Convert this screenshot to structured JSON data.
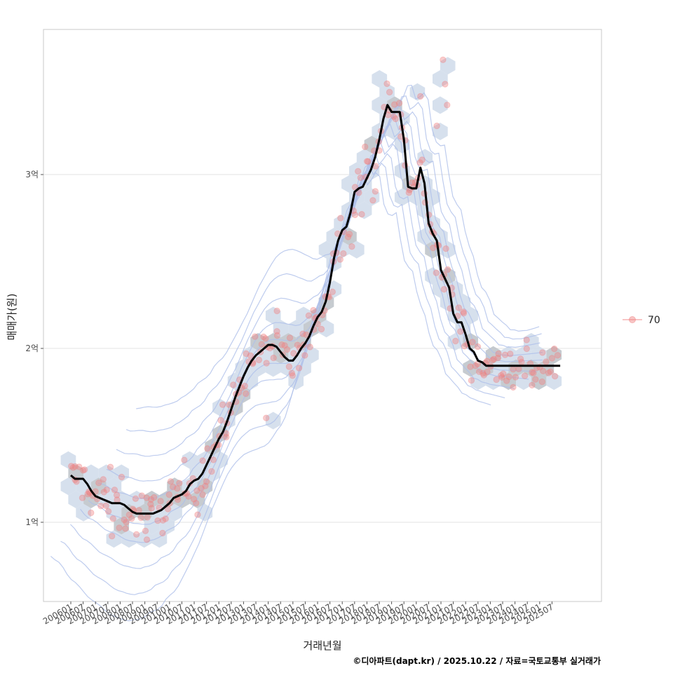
{
  "chart_data": {
    "type": "scatter",
    "title": "",
    "xlabel": "거래년월",
    "ylabel": "매매가(원)",
    "caption": "©디아파트(dapt.kr) / 2025.10.22 / 자료=국토교통부 실거래가",
    "x_ticks": [
      "200601",
      "200607",
      "200701",
      "200707",
      "200801",
      "200807",
      "200901",
      "200907",
      "201001",
      "201007",
      "201101",
      "201107",
      "201201",
      "201207",
      "201301",
      "201307",
      "201401",
      "201407",
      "201501",
      "201507",
      "201601",
      "201607",
      "201701",
      "201707",
      "201801",
      "201807",
      "201901",
      "201907",
      "202001",
      "202007",
      "202101",
      "202107",
      "202201",
      "202207",
      "202301",
      "202307",
      "202401",
      "202407",
      "202501",
      "202507"
    ],
    "y_ticks": [
      {
        "label": "1억",
        "value": 1.0
      },
      {
        "label": "2억",
        "value": 2.0
      },
      {
        "label": "3억",
        "value": 3.0
      }
    ],
    "y_unit": "억원",
    "ylim": [
      0.55,
      3.85
    ],
    "x_range_months": [
      -3,
      237
    ],
    "grid": "horizontal",
    "legend": {
      "position": "right",
      "entries": [
        {
          "label": "70",
          "color": "#f08080"
        }
      ]
    },
    "colors": {
      "points": "#f08080",
      "trend": "#000000",
      "contour": "#aebfea",
      "hex": "#bcc2c8",
      "hex_light": "#cfdaea"
    },
    "trend_line": {
      "x": [
        0,
        2,
        4,
        6,
        8,
        10,
        12,
        14,
        16,
        18,
        20,
        22,
        24,
        26,
        28,
        30,
        32,
        34,
        36,
        38,
        40,
        42,
        44,
        46,
        48,
        50,
        52,
        54,
        56,
        58,
        60,
        62,
        64,
        66,
        68,
        70,
        72,
        74,
        76,
        78,
        80,
        82,
        84,
        86,
        88,
        90,
        92,
        94,
        96,
        98,
        100,
        102,
        104,
        106,
        108,
        110,
        112,
        114,
        116,
        118,
        120,
        122,
        124,
        126,
        128,
        130,
        132,
        134,
        136,
        138,
        140,
        142,
        144,
        146,
        148,
        150,
        152,
        154,
        156,
        158,
        160,
        162,
        164,
        166,
        168,
        170,
        172,
        174,
        176,
        178,
        180,
        182,
        184,
        186,
        188,
        190,
        192,
        194,
        196,
        198,
        200,
        202,
        204,
        206,
        208,
        210,
        212,
        214,
        216,
        218,
        220,
        222,
        224,
        226,
        228,
        230,
        232,
        234,
        236
      ],
      "y": [
        1.27,
        1.25,
        1.25,
        1.25,
        1.22,
        1.18,
        1.15,
        1.14,
        1.13,
        1.12,
        1.11,
        1.11,
        1.11,
        1.1,
        1.08,
        1.06,
        1.05,
        1.05,
        1.05,
        1.05,
        1.05,
        1.06,
        1.07,
        1.09,
        1.11,
        1.14,
        1.15,
        1.16,
        1.18,
        1.22,
        1.24,
        1.25,
        1.28,
        1.33,
        1.38,
        1.43,
        1.48,
        1.52,
        1.58,
        1.65,
        1.72,
        1.78,
        1.84,
        1.89,
        1.93,
        1.96,
        1.98,
        2.0,
        2.02,
        2.02,
        2.01,
        1.98,
        1.95,
        1.93,
        1.93,
        1.96,
        2.0,
        2.03,
        2.07,
        2.13,
        2.18,
        2.21,
        2.27,
        2.38,
        2.52,
        2.62,
        2.68,
        2.7,
        2.78,
        2.9,
        2.92,
        2.93,
        2.98,
        3.03,
        3.1,
        3.2,
        3.32,
        3.4,
        3.36,
        3.36,
        3.36,
        3.2,
        2.93,
        2.92,
        2.92,
        3.04,
        2.95,
        2.72,
        2.66,
        2.62,
        2.45,
        2.4,
        2.35,
        2.2,
        2.15,
        2.15,
        2.08,
        2.0,
        1.98,
        1.93,
        1.92,
        1.9,
        1.9,
        1.9,
        1.9,
        1.9,
        1.9,
        1.9,
        1.9,
        1.9,
        1.9,
        1.9,
        1.9,
        1.9,
        1.9,
        1.9,
        1.9,
        1.9,
        1.9
      ]
    },
    "trend_end_month": 238
  }
}
